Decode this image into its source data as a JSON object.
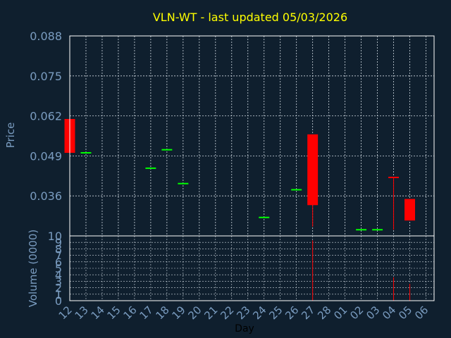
{
  "colors": {
    "background": "#0f1f2e",
    "title": "#ffff00",
    "axis_text": "#7a9cc0",
    "label_text": "#7a9cc0",
    "frame": "#ffffff",
    "grid": "#cfd8e0",
    "up": "#00ff00",
    "down": "#ff0000"
  },
  "chart_data": {
    "type": "candlestick",
    "title": "VLN-WT - last updated 05/03/2026",
    "ylabel": "Price",
    "volume_label": "Volume (0000)",
    "xlabel": "Day",
    "grid": true,
    "price_ylim": [
      0.023,
      0.088
    ],
    "price_ticks": [
      "0.088",
      "0.075",
      "0.062",
      "0.049",
      "0.036"
    ],
    "volume_ylim": [
      0,
      10
    ],
    "volume_ticks": [
      "10",
      "9",
      "8",
      "7",
      "6",
      "5",
      "4",
      "3",
      "2",
      "1",
      "0"
    ],
    "x_ticks": [
      "12",
      "13",
      "14",
      "15",
      "16",
      "17",
      "18",
      "19",
      "20",
      "21",
      "22",
      "23",
      "24",
      "25",
      "26",
      "27",
      "28",
      "01",
      "02",
      "03",
      "04",
      "05",
      "06"
    ],
    "candles": [
      {
        "day": "12",
        "open": 0.061,
        "high": 0.061,
        "low": 0.05,
        "close": 0.05,
        "volume": 0
      },
      {
        "day": "13",
        "open": 0.05,
        "high": 0.05,
        "low": 0.05,
        "close": 0.05,
        "volume": 0
      },
      {
        "day": "17",
        "open": 0.045,
        "high": 0.045,
        "low": 0.045,
        "close": 0.045,
        "volume": 0
      },
      {
        "day": "18",
        "open": 0.051,
        "high": 0.051,
        "low": 0.051,
        "close": 0.051,
        "volume": 0
      },
      {
        "day": "19",
        "open": 0.04,
        "high": 0.04,
        "low": 0.04,
        "close": 0.04,
        "volume": 0
      },
      {
        "day": "24",
        "open": 0.029,
        "high": 0.029,
        "low": 0.029,
        "close": 0.029,
        "volume": 0
      },
      {
        "day": "26",
        "open": 0.038,
        "high": 0.038,
        "low": 0.038,
        "close": 0.038,
        "volume": 0
      },
      {
        "day": "27",
        "open": 0.056,
        "high": 0.056,
        "low": 0.026,
        "close": 0.033,
        "volume": 9.3
      },
      {
        "day": "02",
        "open": 0.025,
        "high": 0.025,
        "low": 0.025,
        "close": 0.025,
        "volume": 0
      },
      {
        "day": "03",
        "open": 0.025,
        "high": 0.025,
        "low": 0.025,
        "close": 0.025,
        "volume": 0
      },
      {
        "day": "04",
        "open": 0.042,
        "high": 0.042,
        "low": 0.025,
        "close": 0.042,
        "volume": 3.6
      },
      {
        "day": "05",
        "open": 0.035,
        "high": 0.035,
        "low": 0.028,
        "close": 0.028,
        "volume": 2.6
      }
    ]
  }
}
